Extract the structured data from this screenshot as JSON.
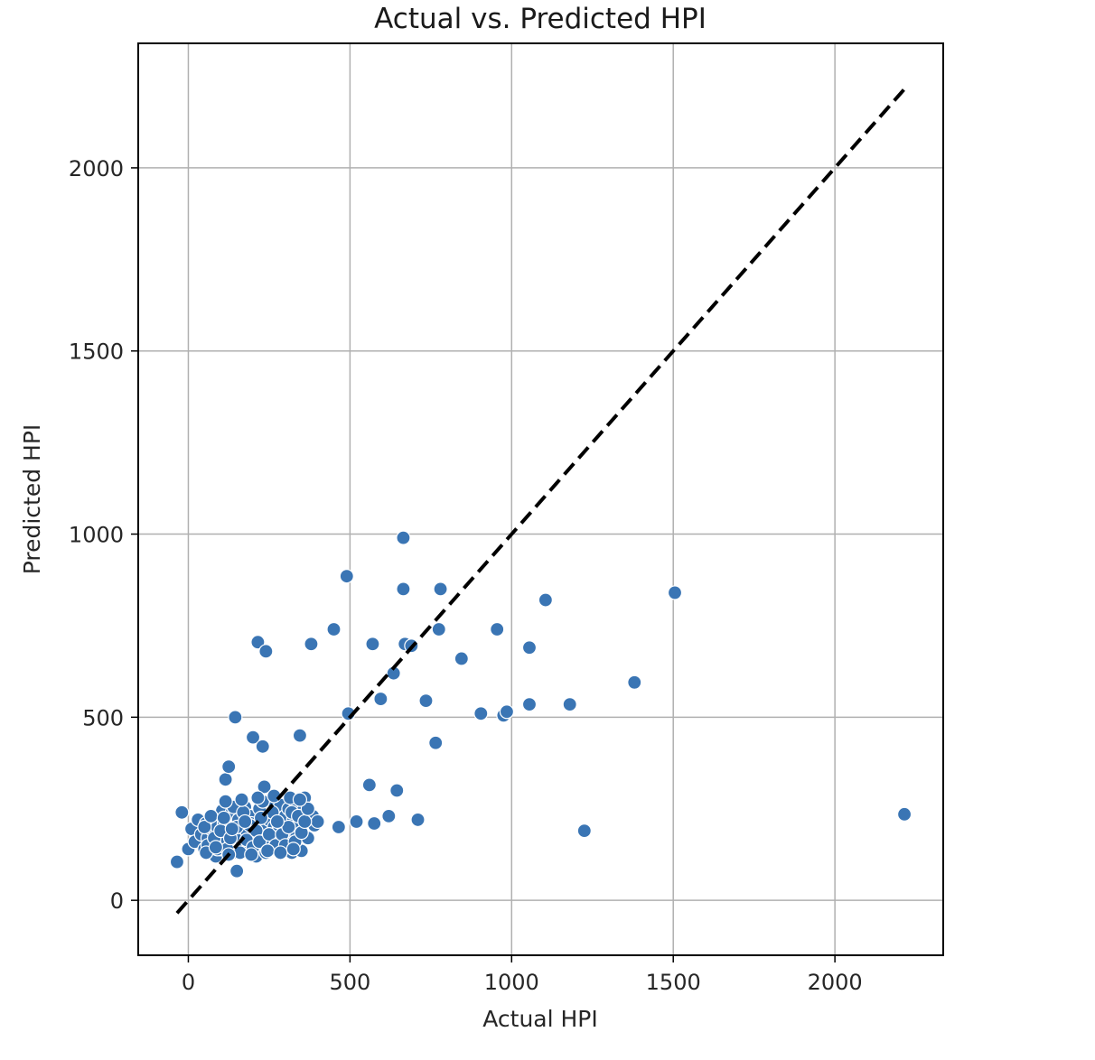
{
  "chart_data": {
    "type": "scatter",
    "title": "Actual vs. Predicted HPI",
    "xlabel": "Actual HPI",
    "ylabel": "Predicted HPI",
    "xlim": [
      -155,
      2335
    ],
    "ylim": [
      -150,
      2340
    ],
    "xticks": [
      0,
      500,
      1000,
      1500,
      2000
    ],
    "yticks": [
      0,
      500,
      1000,
      1500,
      2000
    ],
    "xtick_labels": [
      "0",
      "500",
      "1000",
      "1500",
      "2000"
    ],
    "ytick_labels": [
      "0",
      "500",
      "1000",
      "1500",
      "2000"
    ],
    "grid": true,
    "point_color": "#3a75b4",
    "reference_line": {
      "style": "dashed",
      "color": "#000000",
      "from": [
        -35,
        -35
      ],
      "to": [
        2220,
        2220
      ]
    },
    "points": [
      [
        -35,
        105
      ],
      [
        -20,
        240
      ],
      [
        0,
        140
      ],
      [
        10,
        195
      ],
      [
        20,
        160
      ],
      [
        30,
        220
      ],
      [
        40,
        180
      ],
      [
        50,
        140
      ],
      [
        55,
        210
      ],
      [
        60,
        170
      ],
      [
        70,
        195
      ],
      [
        75,
        150
      ],
      [
        80,
        230
      ],
      [
        85,
        120
      ],
      [
        90,
        200
      ],
      [
        95,
        175
      ],
      [
        100,
        140
      ],
      [
        105,
        245
      ],
      [
        110,
        210
      ],
      [
        115,
        330
      ],
      [
        120,
        165
      ],
      [
        125,
        365
      ],
      [
        130,
        190
      ],
      [
        135,
        240
      ],
      [
        140,
        130
      ],
      [
        145,
        500
      ],
      [
        150,
        80
      ],
      [
        155,
        220
      ],
      [
        160,
        170
      ],
      [
        165,
        200
      ],
      [
        170,
        150
      ],
      [
        175,
        255
      ],
      [
        180,
        190
      ],
      [
        185,
        140
      ],
      [
        190,
        230
      ],
      [
        195,
        210
      ],
      [
        200,
        445
      ],
      [
        205,
        170
      ],
      [
        210,
        120
      ],
      [
        215,
        705
      ],
      [
        220,
        250
      ],
      [
        225,
        195
      ],
      [
        230,
        420
      ],
      [
        235,
        310
      ],
      [
        240,
        680
      ],
      [
        245,
        160
      ],
      [
        250,
        220
      ],
      [
        255,
        270
      ],
      [
        260,
        140
      ],
      [
        265,
        200
      ],
      [
        270,
        235
      ],
      [
        275,
        185
      ],
      [
        280,
        150
      ],
      [
        285,
        260
      ],
      [
        290,
        210
      ],
      [
        295,
        170
      ],
      [
        300,
        230
      ],
      [
        305,
        140
      ],
      [
        310,
        250
      ],
      [
        315,
        190
      ],
      [
        320,
        130
      ],
      [
        325,
        220
      ],
      [
        330,
        270
      ],
      [
        335,
        175
      ],
      [
        340,
        205
      ],
      [
        345,
        450
      ],
      [
        350,
        135
      ],
      [
        355,
        245
      ],
      [
        360,
        280
      ],
      [
        370,
        170
      ],
      [
        380,
        700
      ],
      [
        385,
        230
      ],
      [
        390,
        205
      ],
      [
        400,
        215
      ],
      [
        450,
        740
      ],
      [
        465,
        200
      ],
      [
        490,
        885
      ],
      [
        495,
        510
      ],
      [
        520,
        215
      ],
      [
        560,
        315
      ],
      [
        570,
        700
      ],
      [
        575,
        210
      ],
      [
        595,
        550
      ],
      [
        620,
        230
      ],
      [
        635,
        620
      ],
      [
        645,
        300
      ],
      [
        665,
        990
      ],
      [
        665,
        850
      ],
      [
        670,
        700
      ],
      [
        690,
        695
      ],
      [
        735,
        545
      ],
      [
        765,
        430
      ],
      [
        775,
        740
      ],
      [
        780,
        850
      ],
      [
        710,
        220
      ],
      [
        845,
        660
      ],
      [
        905,
        510
      ],
      [
        955,
        740
      ],
      [
        975,
        505
      ],
      [
        985,
        515
      ],
      [
        1055,
        690
      ],
      [
        1055,
        535
      ],
      [
        1105,
        820
      ],
      [
        1180,
        535
      ],
      [
        1225,
        190
      ],
      [
        1380,
        595
      ],
      [
        1505,
        840
      ],
      [
        2215,
        235
      ],
      [
        50,
        200
      ],
      [
        60,
        150
      ],
      [
        70,
        230
      ],
      [
        80,
        170
      ],
      [
        90,
        140
      ],
      [
        100,
        190
      ],
      [
        110,
        225
      ],
      [
        120,
        140
      ],
      [
        130,
        170
      ],
      [
        140,
        255
      ],
      [
        150,
        200
      ],
      [
        160,
        130
      ],
      [
        170,
        240
      ],
      [
        180,
        165
      ],
      [
        190,
        205
      ],
      [
        200,
        145
      ],
      [
        210,
        190
      ],
      [
        220,
        160
      ],
      [
        230,
        270
      ],
      [
        240,
        130
      ],
      [
        250,
        180
      ],
      [
        260,
        240
      ],
      [
        270,
        150
      ],
      [
        280,
        205
      ],
      [
        290,
        180
      ],
      [
        300,
        150
      ],
      [
        310,
        200
      ],
      [
        320,
        240
      ],
      [
        330,
        160
      ],
      [
        340,
        230
      ],
      [
        350,
        185
      ],
      [
        360,
        215
      ],
      [
        370,
        250
      ],
      [
        115,
        270
      ],
      [
        165,
        275
      ],
      [
        215,
        280
      ],
      [
        265,
        285
      ],
      [
        315,
        280
      ],
      [
        345,
        275
      ],
      [
        55,
        130
      ],
      [
        85,
        145
      ],
      [
        125,
        125
      ],
      [
        195,
        125
      ],
      [
        245,
        135
      ],
      [
        285,
        130
      ],
      [
        325,
        140
      ],
      [
        135,
        195
      ],
      [
        175,
        215
      ],
      [
        225,
        225
      ],
      [
        275,
        215
      ]
    ]
  }
}
